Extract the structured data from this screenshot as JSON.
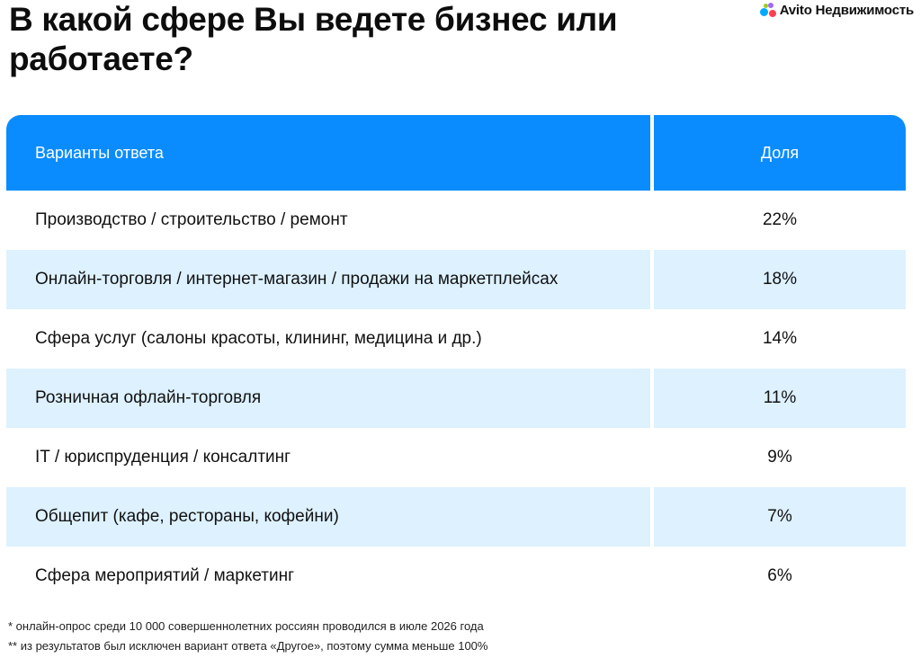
{
  "title": "В какой сфере Вы ведете бизнес или работаете?",
  "logo": {
    "text": "Avito Недвижимость",
    "colors": [
      "#00aaff",
      "#a169f7",
      "#ff4053",
      "#97cf26"
    ]
  },
  "colors": {
    "header_bg": "#0a8cff",
    "stripe_bg": "#ddf1ff"
  },
  "chart_data": {
    "type": "table",
    "columns": [
      "Варианты ответа",
      "Доля"
    ],
    "rows": [
      {
        "answer": "Производство / строительство / ремонт",
        "share": "22%"
      },
      {
        "answer": "Онлайн-торговля / интернет-магазин / продажи на маркетплейсах",
        "share": "18%"
      },
      {
        "answer": "Сфера услуг (салоны красоты, клининг, медицина и др.)",
        "share": "14%"
      },
      {
        "answer": "Розничная офлайн-торговля",
        "share": "11%"
      },
      {
        "answer": "IT / юриспруденция / консалтинг",
        "share": "9%"
      },
      {
        "answer": "Общепит (кафе, рестораны, кофейни)",
        "share": "7%"
      },
      {
        "answer": "Сфера мероприятий / маркетинг",
        "share": "6%"
      }
    ]
  },
  "footnotes": [
    "* онлайн-опрос среди 10 000 совершеннолетних россиян проводился в июле 2026 года",
    "** из результатов был исключен вариант ответа «Другое», поэтому сумма меньше 100%"
  ]
}
